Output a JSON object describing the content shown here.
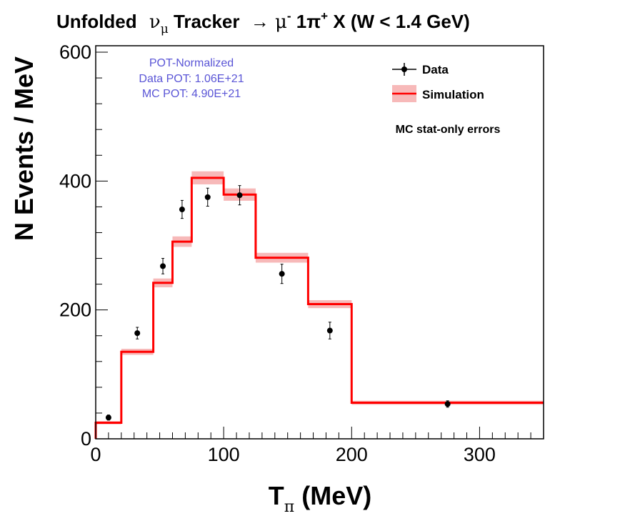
{
  "chart_data": {
    "type": "line",
    "title": {
      "pre": "Unfolded ",
      "nu": "ν",
      "nu_sub": "μ",
      "mid": " Tracker ",
      "arrow": "→",
      "mu": " μ",
      "mu_sup": "-",
      "one": " 1π",
      "pi_sup": "+",
      "post": " X  (W < 1.4 GeV)"
    },
    "xlabel": {
      "main": "T",
      "sub": "π",
      "unit": " (MeV)"
    },
    "ylabel": "N Events / MeV",
    "xlim": [
      0,
      350
    ],
    "ylim": [
      0,
      610
    ],
    "x_ticks": [
      0,
      100,
      200,
      300
    ],
    "y_ticks": [
      0,
      200,
      400,
      600
    ],
    "pot_box": [
      "POT-Normalized",
      "Data POT: 1.06E+21",
      "MC POT: 4.90E+21"
    ],
    "legend": {
      "data": "Data",
      "simulation": "Simulation"
    },
    "note": "MC stat-only errors",
    "colors": {
      "simulation": "#ff0000",
      "band": "#f7b9b9",
      "data": "#000000",
      "pot_text": "#5a55d6"
    },
    "simulation": {
      "name": "Simulation",
      "bin_edges": [
        0,
        20,
        45,
        60,
        75,
        100,
        125,
        166,
        200,
        350
      ],
      "values": [
        25,
        135,
        242,
        306,
        405,
        379,
        281,
        209,
        56
      ]
    },
    "data": {
      "name": "Data",
      "x": [
        10,
        32.5,
        52.5,
        67.5,
        87.5,
        112.5,
        145.5,
        183,
        275
      ],
      "y": [
        33,
        164,
        268,
        356,
        375,
        378,
        256,
        168,
        54
      ],
      "err": [
        4,
        9,
        12,
        14,
        14,
        15,
        15,
        13,
        5
      ]
    }
  }
}
